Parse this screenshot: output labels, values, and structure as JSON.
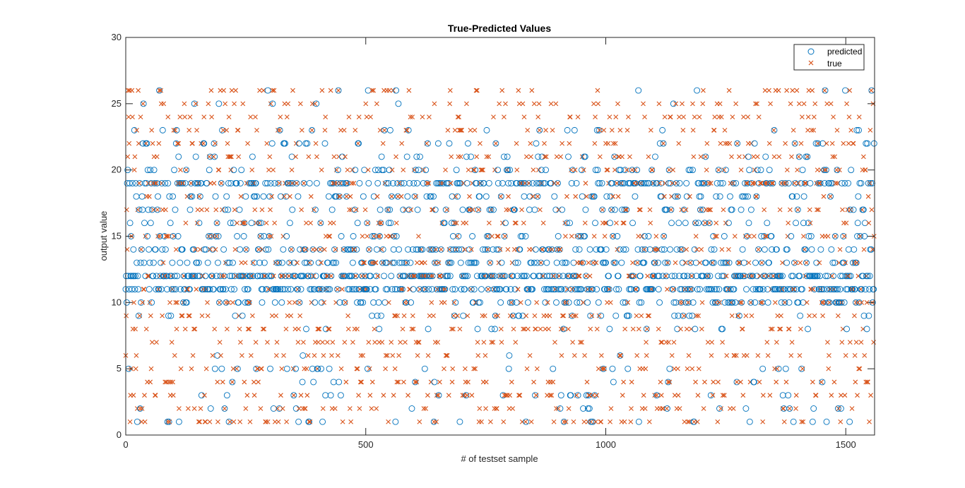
{
  "chart_data": {
    "type": "scatter",
    "title": "True-Predicted Values",
    "xlabel": "# of testset sample",
    "ylabel": "output value",
    "xlim": [
      0,
      1560
    ],
    "ylim": [
      0,
      30
    ],
    "xticks": [
      0,
      500,
      1000,
      1500
    ],
    "yticks": [
      0,
      5,
      10,
      15,
      20,
      25,
      30
    ],
    "grid": false,
    "legend_position": "top-right",
    "n_samples": 1560,
    "series": [
      {
        "name": "predicted",
        "marker": "circle",
        "color": "#0072BD",
        "value_levels": [
          1,
          2,
          3,
          4,
          5,
          6,
          8,
          9,
          10,
          11,
          12,
          13,
          14,
          15,
          16,
          17,
          18,
          19,
          20,
          21,
          22,
          23,
          25,
          26
        ],
        "value_weights": [
          3,
          3,
          3,
          2,
          3,
          1,
          2,
          4,
          12,
          30,
          34,
          14,
          12,
          8,
          6,
          8,
          8,
          26,
          6,
          4,
          4,
          3,
          1,
          1
        ],
        "sample_values": [
          11,
          12,
          10,
          19,
          20,
          12,
          5,
          11,
          19,
          16,
          12,
          15,
          12,
          11,
          19,
          12,
          14,
          12,
          23,
          11,
          12,
          19,
          18,
          13,
          1,
          12,
          11,
          9,
          17,
          19
        ]
      },
      {
        "name": "true",
        "marker": "x",
        "color": "#D95319",
        "value_levels": [
          1,
          2,
          3,
          4,
          5,
          6,
          7,
          8,
          9,
          10,
          11,
          12,
          13,
          14,
          15,
          16,
          17,
          18,
          19,
          20,
          21,
          22,
          23,
          24,
          25,
          26
        ],
        "value_weights": [
          5,
          5,
          5,
          5,
          5,
          5,
          5,
          5,
          5,
          4,
          4,
          5,
          5,
          5,
          5,
          4,
          4,
          4,
          5,
          5,
          4,
          4,
          5,
          5,
          5,
          5
        ],
        "sample_values": [
          6,
          9,
          17,
          14,
          21,
          26,
          24,
          22,
          26,
          1,
          3,
          5,
          15,
          26,
          24,
          8,
          3,
          10,
          20,
          21,
          8,
          5,
          6,
          23,
          2,
          17,
          26,
          22,
          19,
          9
        ]
      }
    ]
  }
}
